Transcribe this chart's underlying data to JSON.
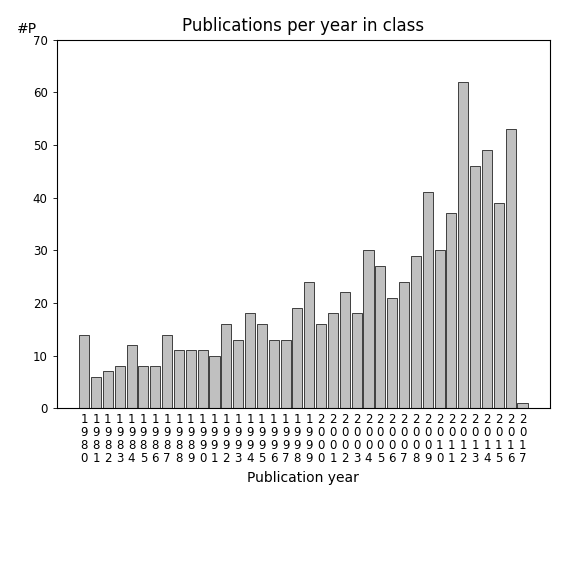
{
  "title": "Publications per year in class",
  "xlabel": "Publication year",
  "ylabel": "#P",
  "years": [
    1980,
    1981,
    1982,
    1983,
    1984,
    1985,
    1986,
    1987,
    1988,
    1989,
    1990,
    1991,
    1992,
    1993,
    1994,
    1995,
    1996,
    1997,
    1998,
    1999,
    2000,
    2001,
    2002,
    2003,
    2004,
    2005,
    2006,
    2007,
    2008,
    2009,
    2010,
    2011,
    2012,
    2013,
    2014,
    2015,
    2016,
    2017
  ],
  "values": [
    14,
    6,
    7,
    8,
    12,
    8,
    8,
    14,
    11,
    11,
    11,
    10,
    16,
    13,
    18,
    16,
    13,
    13,
    19,
    24,
    16,
    18,
    22,
    18,
    30,
    27,
    21,
    24,
    29,
    41,
    30,
    37,
    62,
    46,
    49,
    39,
    53,
    1
  ],
  "bar_color": "#c0c0c0",
  "bar_edgecolor": "#000000",
  "ylim": [
    0,
    70
  ],
  "yticks": [
    0,
    10,
    20,
    30,
    40,
    50,
    60,
    70
  ],
  "bg_color": "#ffffff",
  "title_fontsize": 12,
  "label_fontsize": 10,
  "tick_fontsize": 8.5
}
